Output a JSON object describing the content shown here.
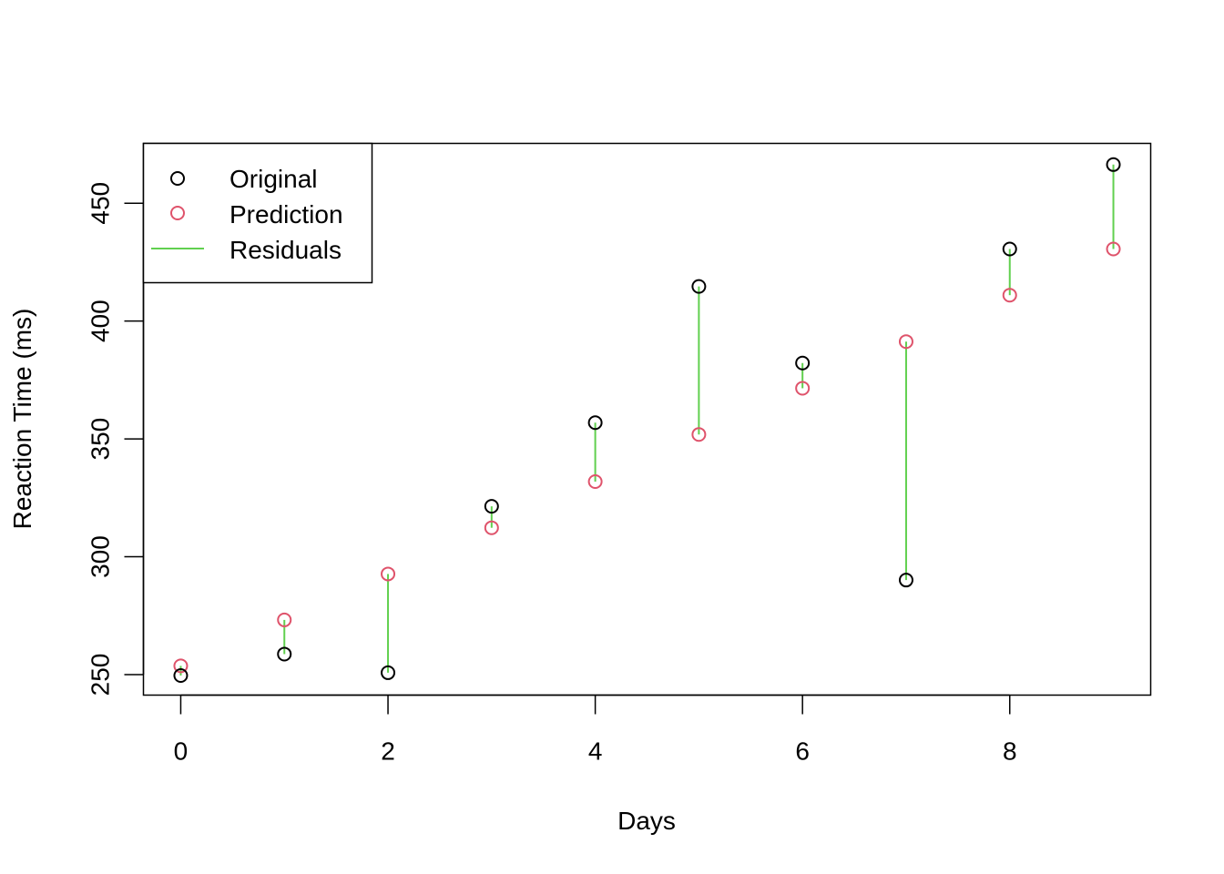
{
  "chart_data": {
    "type": "scatter",
    "title": "",
    "xlabel": "Days",
    "ylabel": "Reaction Time (ms)",
    "xlim": [
      -0.36,
      9.36
    ],
    "ylim": [
      241.3,
      475.4
    ],
    "x_ticks": [
      0,
      2,
      4,
      6,
      8
    ],
    "y_ticks": [
      250,
      300,
      350,
      400,
      450
    ],
    "grid": false,
    "legend_position": "top-left",
    "x": [
      0,
      1,
      2,
      3,
      4,
      5,
      6,
      7,
      8,
      9
    ],
    "series": [
      {
        "name": "Original",
        "kind": "points",
        "color": "#000000",
        "values": [
          249.6,
          258.7,
          250.8,
          321.4,
          356.9,
          414.7,
          382.2,
          290.1,
          430.6,
          466.4
        ]
      },
      {
        "name": "Prediction",
        "kind": "points",
        "color": "#DF536B",
        "values": [
          253.7,
          273.2,
          292.7,
          312.3,
          331.9,
          351.9,
          371.5,
          391.3,
          411.0,
          430.6
        ]
      },
      {
        "name": "Residuals",
        "kind": "segments",
        "color": "#61D04F"
      }
    ]
  }
}
